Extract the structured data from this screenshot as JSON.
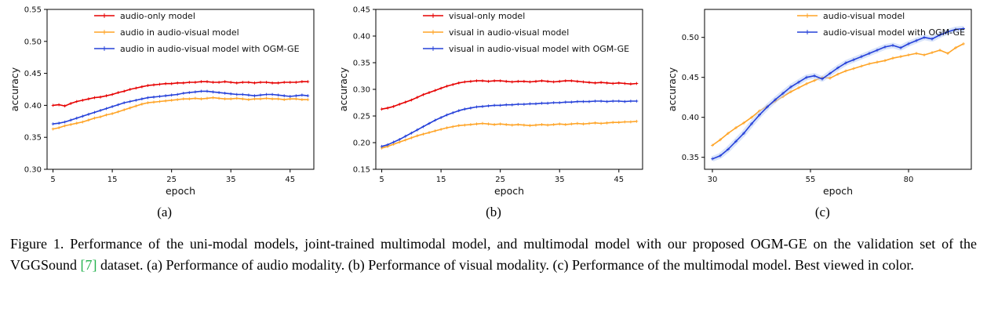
{
  "figure": {
    "subcaptions": [
      "(a)",
      "(b)",
      "(c)"
    ],
    "caption": {
      "part1": "Figure 1. Performance of the uni-modal models, joint-trained multimodal model, and multimodal model with our proposed OGM-GE on the validation set of the VGGSound ",
      "citation": "[7]",
      "part2": " dataset. (a) Performance of audio modality. (b) Performance of visual modality. (c) Performance of the multimodal model. Best viewed in color."
    }
  },
  "colors": {
    "red": "#e60000",
    "orange": "#ffa426",
    "blue": "#2540d9",
    "halo": "#b9cdf5",
    "citation_green": "#22b14c",
    "axis": "#000000"
  },
  "chart_data": [
    {
      "type": "line",
      "xlabel": "epoch",
      "ylabel": "accuracy",
      "xlim": [
        4,
        49
      ],
      "ylim": [
        0.3,
        0.55
      ],
      "xticks": [
        5,
        15,
        25,
        35,
        45
      ],
      "yticks": [
        0.3,
        0.35,
        0.4,
        0.45,
        0.5,
        0.55
      ],
      "legend_dx": 60,
      "series": [
        {
          "name": "audio-only model",
          "color": "red",
          "x_start": 5,
          "x_step": 1,
          "values": [
            0.4,
            0.401,
            0.399,
            0.403,
            0.406,
            0.408,
            0.41,
            0.412,
            0.413,
            0.415,
            0.417,
            0.42,
            0.422,
            0.425,
            0.427,
            0.429,
            0.431,
            0.432,
            0.433,
            0.434,
            0.434,
            0.435,
            0.435,
            0.436,
            0.436,
            0.437,
            0.437,
            0.436,
            0.436,
            0.437,
            0.436,
            0.435,
            0.436,
            0.436,
            0.435,
            0.436,
            0.436,
            0.435,
            0.435,
            0.436,
            0.436,
            0.436,
            0.437,
            0.437
          ]
        },
        {
          "name": "audio in audio-visual model",
          "color": "orange",
          "x_start": 5,
          "x_step": 1,
          "values": [
            0.363,
            0.365,
            0.368,
            0.37,
            0.372,
            0.374,
            0.377,
            0.38,
            0.382,
            0.385,
            0.387,
            0.39,
            0.393,
            0.396,
            0.399,
            0.402,
            0.404,
            0.405,
            0.406,
            0.407,
            0.408,
            0.409,
            0.41,
            0.41,
            0.411,
            0.41,
            0.411,
            0.412,
            0.411,
            0.41,
            0.41,
            0.411,
            0.41,
            0.409,
            0.41,
            0.41,
            0.411,
            0.41,
            0.41,
            0.409,
            0.41,
            0.41,
            0.409,
            0.409
          ]
        },
        {
          "name": "audio in audio-visual model with OGM-GE",
          "color": "blue",
          "x_start": 5,
          "x_step": 1,
          "values": [
            0.371,
            0.372,
            0.374,
            0.377,
            0.38,
            0.383,
            0.386,
            0.389,
            0.392,
            0.395,
            0.398,
            0.401,
            0.404,
            0.406,
            0.408,
            0.41,
            0.412,
            0.413,
            0.414,
            0.415,
            0.416,
            0.417,
            0.419,
            0.42,
            0.421,
            0.422,
            0.422,
            0.421,
            0.42,
            0.419,
            0.418,
            0.417,
            0.417,
            0.416,
            0.415,
            0.416,
            0.417,
            0.417,
            0.416,
            0.415,
            0.414,
            0.415,
            0.416,
            0.415
          ]
        }
      ]
    },
    {
      "type": "line",
      "xlabel": "epoch",
      "ylabel": "accuracy",
      "xlim": [
        4,
        49
      ],
      "ylim": [
        0.15,
        0.45
      ],
      "xticks": [
        5,
        15,
        25,
        35,
        45
      ],
      "yticks": [
        0.15,
        0.2,
        0.25,
        0.3,
        0.35,
        0.4,
        0.45
      ],
      "legend_dx": 60,
      "series": [
        {
          "name": "visual-only model",
          "color": "red",
          "x_start": 5,
          "x_step": 1,
          "values": [
            0.263,
            0.265,
            0.268,
            0.272,
            0.276,
            0.28,
            0.285,
            0.29,
            0.294,
            0.298,
            0.302,
            0.306,
            0.309,
            0.312,
            0.314,
            0.315,
            0.316,
            0.316,
            0.315,
            0.316,
            0.316,
            0.315,
            0.314,
            0.315,
            0.315,
            0.314,
            0.315,
            0.316,
            0.315,
            0.314,
            0.315,
            0.316,
            0.316,
            0.315,
            0.314,
            0.313,
            0.312,
            0.313,
            0.312,
            0.311,
            0.312,
            0.311,
            0.31,
            0.311
          ]
        },
        {
          "name": "visual in audio-visual model",
          "color": "orange",
          "x_start": 5,
          "x_step": 1,
          "values": [
            0.19,
            0.193,
            0.197,
            0.201,
            0.205,
            0.209,
            0.213,
            0.216,
            0.219,
            0.222,
            0.225,
            0.228,
            0.23,
            0.232,
            0.233,
            0.234,
            0.235,
            0.236,
            0.235,
            0.234,
            0.235,
            0.234,
            0.233,
            0.234,
            0.233,
            0.232,
            0.233,
            0.234,
            0.233,
            0.234,
            0.235,
            0.234,
            0.235,
            0.236,
            0.235,
            0.236,
            0.237,
            0.236,
            0.237,
            0.238,
            0.238,
            0.239,
            0.239,
            0.24
          ]
        },
        {
          "name": "visual in audio-visual model with OGM-GE",
          "color": "blue",
          "x_start": 5,
          "x_step": 1,
          "values": [
            0.193,
            0.196,
            0.201,
            0.206,
            0.212,
            0.218,
            0.224,
            0.23,
            0.236,
            0.242,
            0.247,
            0.252,
            0.256,
            0.26,
            0.263,
            0.265,
            0.267,
            0.268,
            0.269,
            0.27,
            0.27,
            0.271,
            0.271,
            0.272,
            0.272,
            0.273,
            0.273,
            0.274,
            0.274,
            0.275,
            0.275,
            0.276,
            0.276,
            0.277,
            0.277,
            0.277,
            0.278,
            0.278,
            0.277,
            0.278,
            0.278,
            0.277,
            0.278,
            0.278
          ]
        }
      ]
    },
    {
      "type": "line",
      "xlabel": "epoch",
      "ylabel": "accuracy",
      "xlim": [
        28,
        96
      ],
      "ylim": [
        0.335,
        0.535
      ],
      "xticks": [
        30,
        55,
        80
      ],
      "yticks": [
        0.35,
        0.4,
        0.45,
        0.5
      ],
      "legend_dx": 118,
      "series": [
        {
          "name": "audio-visual model",
          "color": "orange",
          "x_start": 30,
          "x_step": 2,
          "values": [
            0.365,
            0.372,
            0.38,
            0.387,
            0.393,
            0.4,
            0.408,
            0.414,
            0.42,
            0.426,
            0.432,
            0.437,
            0.442,
            0.446,
            0.45,
            0.449,
            0.454,
            0.458,
            0.461,
            0.464,
            0.467,
            0.469,
            0.471,
            0.474,
            0.476,
            0.478,
            0.48,
            0.478,
            0.481,
            0.484,
            0.48,
            0.487,
            0.492
          ]
        },
        {
          "name": "audio-visual model with OGM-GE",
          "color": "blue",
          "halo": true,
          "x_start": 30,
          "x_step": 2,
          "values": [
            0.348,
            0.352,
            0.36,
            0.37,
            0.38,
            0.392,
            0.403,
            0.413,
            0.422,
            0.43,
            0.438,
            0.444,
            0.45,
            0.452,
            0.448,
            0.455,
            0.462,
            0.468,
            0.472,
            0.476,
            0.48,
            0.484,
            0.488,
            0.49,
            0.487,
            0.492,
            0.496,
            0.5,
            0.498,
            0.503,
            0.507,
            0.51,
            0.511
          ]
        }
      ]
    }
  ]
}
